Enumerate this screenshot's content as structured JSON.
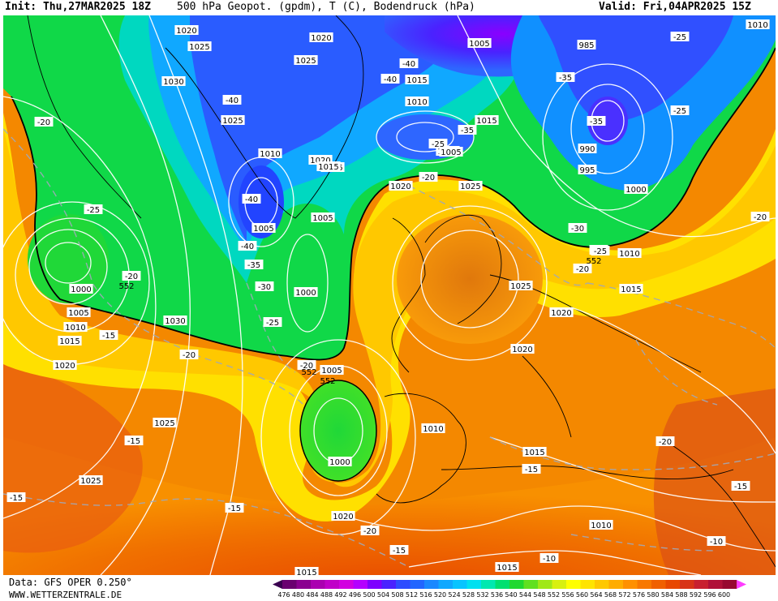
{
  "header": {
    "init": "Init: Thu,27MAR2025 18Z",
    "title": "500 hPa Geopot. (gpdm), T (C), Bodendruck (hPa)",
    "valid": "Valid: Fri,04APR2025 15Z"
  },
  "footer": {
    "data_source": "Data: GFS OPER 0.250°",
    "website": "WWW.WETTERZENTRALE.DE"
  },
  "legend": {
    "values": [
      "476",
      "480",
      "484",
      "488",
      "492",
      "496",
      "500",
      "504",
      "508",
      "512",
      "516",
      "520",
      "524",
      "528",
      "532",
      "536",
      "540",
      "544",
      "548",
      "552",
      "556",
      "560",
      "564",
      "568",
      "572",
      "576",
      "580",
      "584",
      "588",
      "592",
      "596",
      "600"
    ],
    "colors": [
      "#6a0070",
      "#8a0090",
      "#aa00b0",
      "#c000c8",
      "#d200e0",
      "#b400ff",
      "#7e00ff",
      "#4a22ff",
      "#2e4cff",
      "#2266ff",
      "#1a88ff",
      "#10a8ff",
      "#08c4ff",
      "#00e0f0",
      "#00e8b0",
      "#00e070",
      "#20d830",
      "#60e020",
      "#a0e818",
      "#d8f010",
      "#ffff00",
      "#ffe400",
      "#ffc800",
      "#ffac00",
      "#ff9000",
      "#f87800",
      "#f06000",
      "#e84800",
      "#d83418",
      "#c82030",
      "#b01038",
      "#980830"
    ],
    "min_color": "#3a0050",
    "max_color": "#ff3cff"
  },
  "pressure_labels": [
    {
      "text": "1020"
    },
    {
      "text": "1025"
    },
    {
      "text": "1030"
    },
    {
      "text": "1025"
    },
    {
      "text": "1020"
    },
    {
      "text": "1025"
    },
    {
      "text": "1005"
    },
    {
      "text": "985"
    },
    {
      "text": "1015"
    },
    {
      "text": "1010"
    },
    {
      "text": "1015"
    },
    {
      "text": "1005"
    },
    {
      "text": "990"
    },
    {
      "text": "995"
    },
    {
      "text": "1000"
    },
    {
      "text": "1020"
    },
    {
      "text": "1010"
    },
    {
      "text": "1020"
    },
    {
      "text": "1015"
    },
    {
      "text": "1005"
    },
    {
      "text": "1005"
    },
    {
      "text": "1000"
    },
    {
      "text": "1025"
    },
    {
      "text": "1020"
    },
    {
      "text": "1005"
    },
    {
      "text": "1010"
    },
    {
      "text": "1025"
    },
    {
      "text": "1020"
    },
    {
      "text": "1015"
    },
    {
      "text": "1000"
    },
    {
      "text": "1005"
    },
    {
      "text": "1010"
    },
    {
      "text": "1015"
    },
    {
      "text": "1020"
    },
    {
      "text": "1030"
    },
    {
      "text": "1025"
    },
    {
      "text": "1025"
    },
    {
      "text": "1005"
    },
    {
      "text": "1000"
    },
    {
      "text": "1010"
    },
    {
      "text": "1015"
    },
    {
      "text": "1020"
    },
    {
      "text": "1010"
    },
    {
      "text": "1015"
    },
    {
      "text": "1010"
    },
    {
      "text": "1015"
    },
    {
      "text": "1015"
    }
  ],
  "temp_labels": [
    {
      "text": "-20"
    },
    {
      "text": "-25"
    },
    {
      "text": "-40"
    },
    {
      "text": "-40"
    },
    {
      "text": "-40"
    },
    {
      "text": "-35"
    },
    {
      "text": "-35"
    },
    {
      "text": "-25"
    },
    {
      "text": "-25"
    },
    {
      "text": "-35"
    },
    {
      "text": "-25"
    },
    {
      "text": "-20"
    },
    {
      "text": "-40"
    },
    {
      "text": "-40"
    },
    {
      "text": "-35"
    },
    {
      "text": "-30"
    },
    {
      "text": "-25"
    },
    {
      "text": "-20"
    },
    {
      "text": "-20"
    },
    {
      "text": "-15"
    },
    {
      "text": "-20"
    },
    {
      "text": "-20"
    },
    {
      "text": "-30"
    },
    {
      "text": "-25"
    },
    {
      "text": "-20"
    },
    {
      "text": "-20"
    },
    {
      "text": "-15"
    },
    {
      "text": "-15"
    },
    {
      "text": "-15"
    },
    {
      "text": "-20"
    },
    {
      "text": "-15"
    },
    {
      "text": "-15"
    },
    {
      "text": "-10"
    },
    {
      "text": "-10"
    },
    {
      "text": "-20"
    },
    {
      "text": "-15"
    },
    {
      "text": "-20"
    }
  ],
  "geopot_labels": [
    {
      "text": "552"
    },
    {
      "text": "552"
    },
    {
      "text": "552"
    },
    {
      "text": "552"
    }
  ]
}
